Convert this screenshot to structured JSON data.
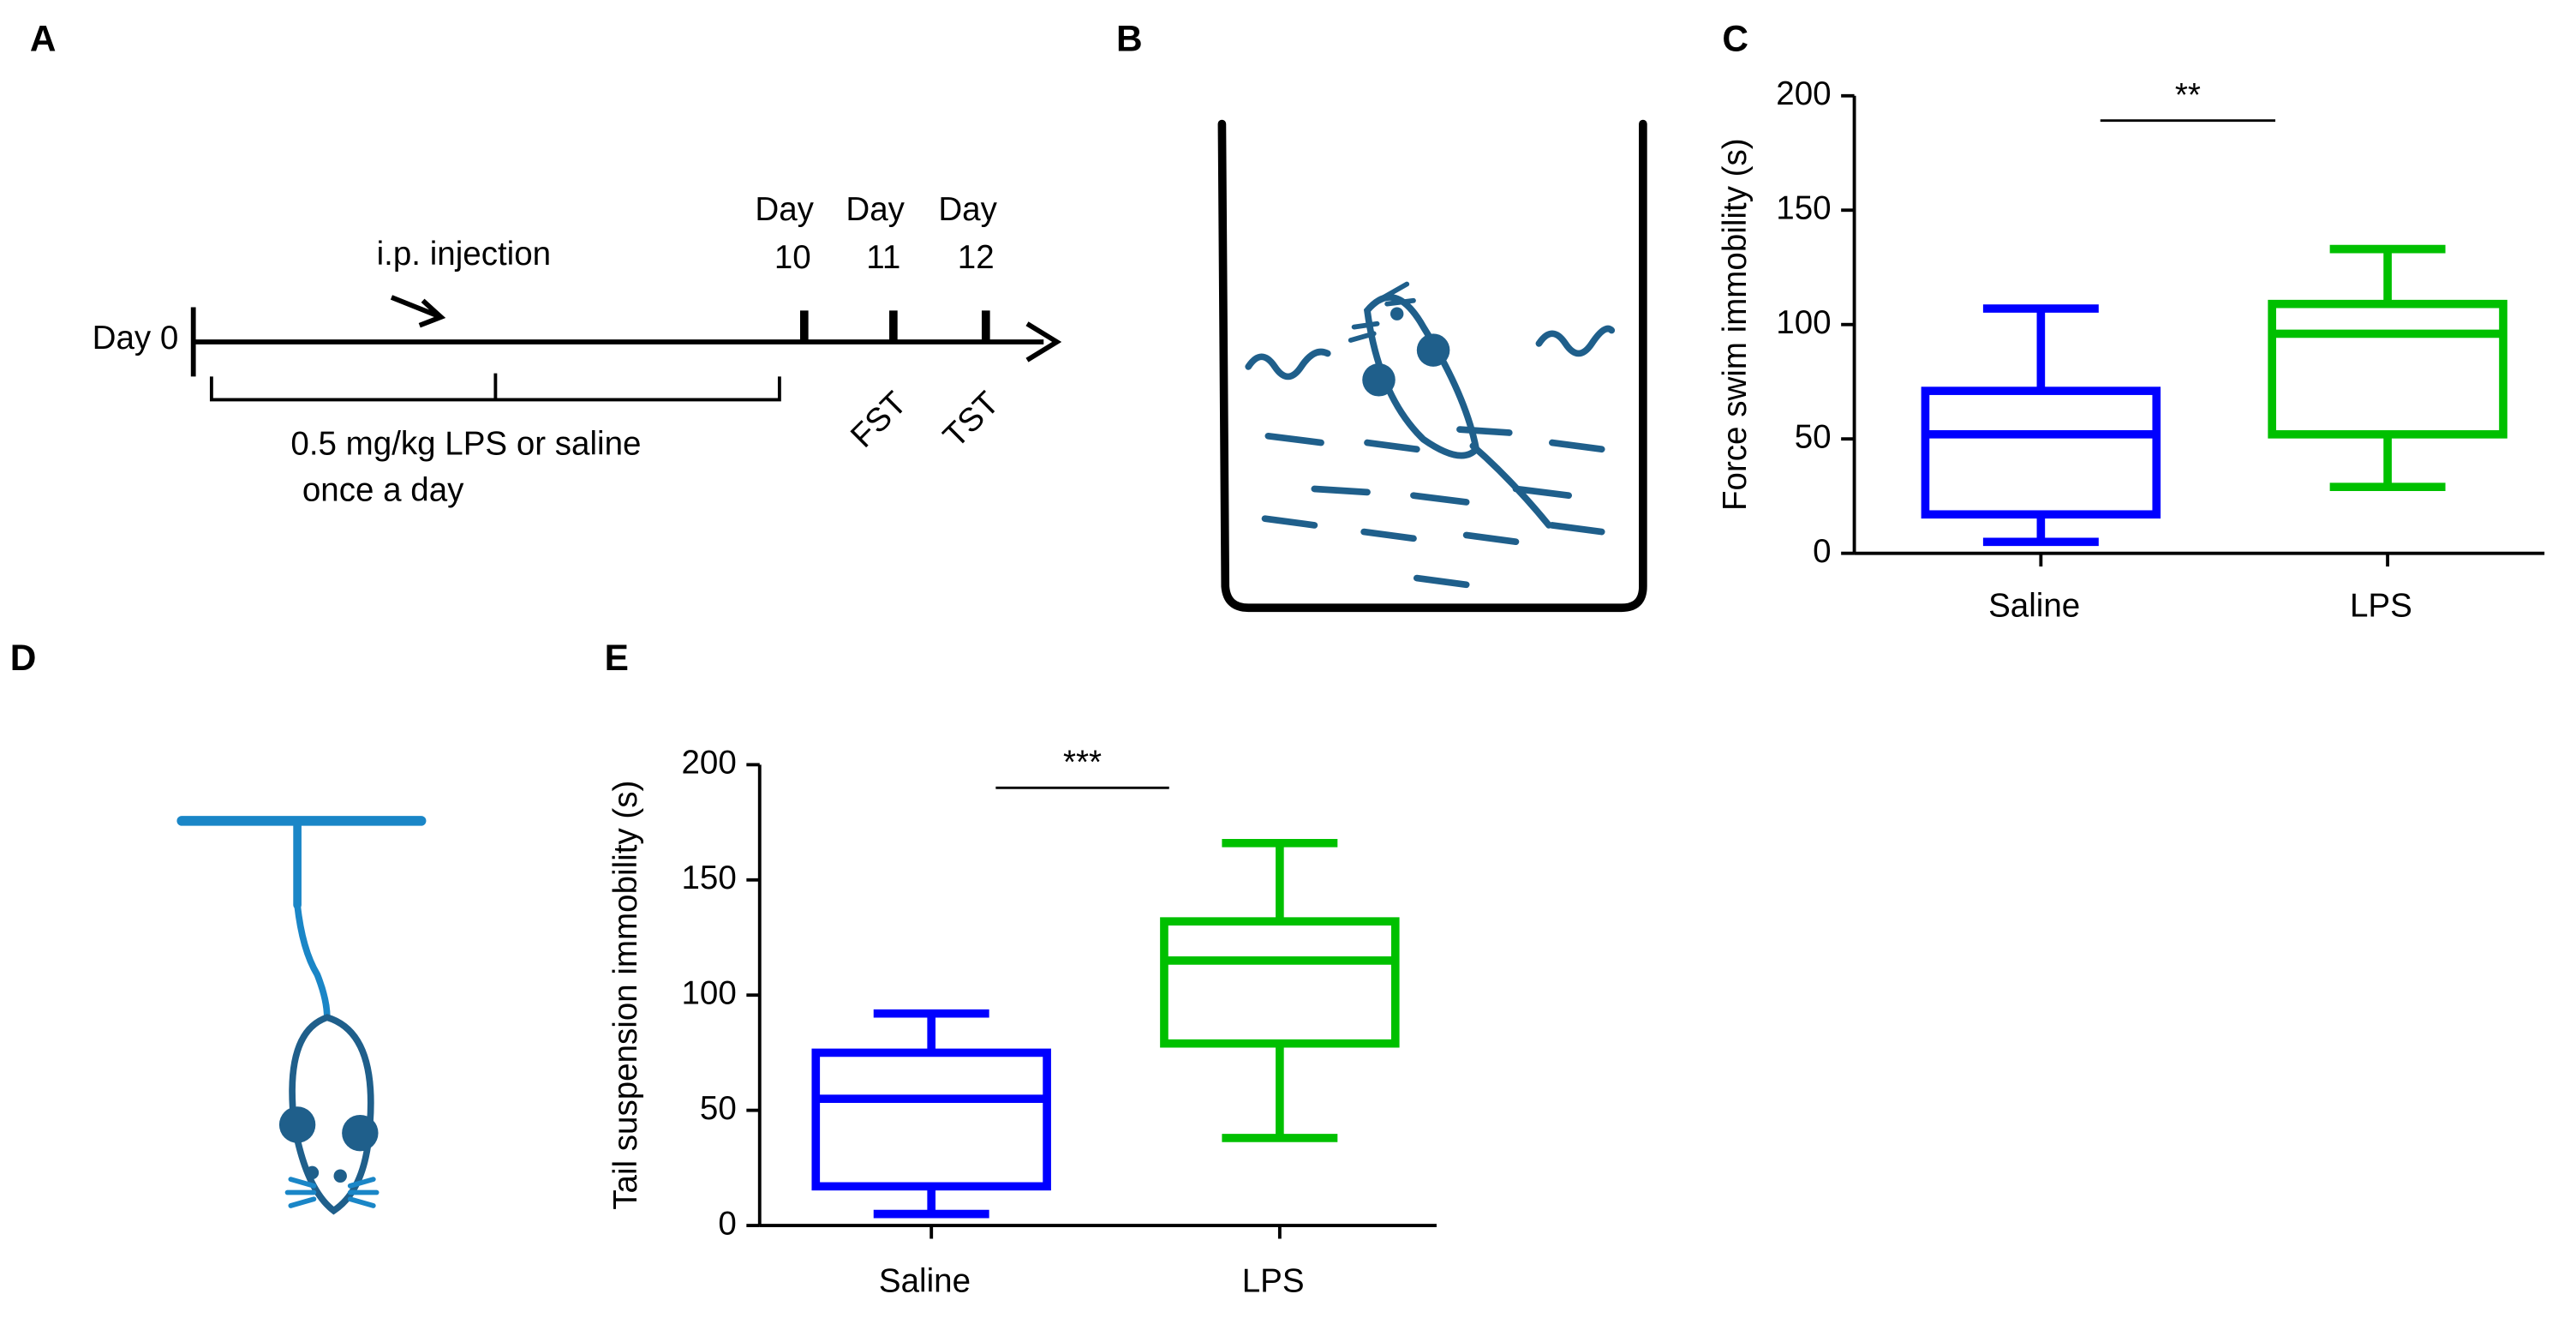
{
  "panels": [
    "A",
    "B",
    "C",
    "D",
    "E"
  ],
  "timeline": {
    "start_label": "Day 0",
    "injection_label": "i.p. injection",
    "day_labels": [
      [
        "Day",
        "10"
      ],
      [
        "Day",
        "11"
      ],
      [
        "Day",
        "12"
      ]
    ],
    "treatment_lines": [
      "0.5 mg/kg LPS or saline",
      "once a day"
    ],
    "tests": [
      "FST",
      "TST"
    ]
  },
  "chart_data": [
    {
      "type": "box",
      "ylabel": "Force swim immobility (s)",
      "categories": [
        "Saline",
        "LPS"
      ],
      "boxes": [
        {
          "color": "#0000ff",
          "min": 5,
          "q1": 17,
          "median": 52,
          "q3": 71,
          "max": 107
        },
        {
          "color": "#00c000",
          "min": 29,
          "q1": 52,
          "median": 96,
          "q3": 109,
          "max": 133
        }
      ],
      "ylim": [
        0,
        200
      ],
      "yticks": [
        0,
        50,
        100,
        150,
        200
      ],
      "significance": "**"
    },
    {
      "type": "box",
      "ylabel": "Tail suspension immobility (s)",
      "categories": [
        "Saline",
        "LPS"
      ],
      "boxes": [
        {
          "color": "#0000ff",
          "min": 5,
          "q1": 17,
          "median": 55,
          "q3": 75,
          "max": 92
        },
        {
          "color": "#00c000",
          "min": 38,
          "q1": 79,
          "median": 115,
          "q3": 132,
          "max": 166
        }
      ],
      "ylim": [
        0,
        200
      ],
      "yticks": [
        0,
        50,
        100,
        150,
        200
      ],
      "significance": "***"
    }
  ]
}
